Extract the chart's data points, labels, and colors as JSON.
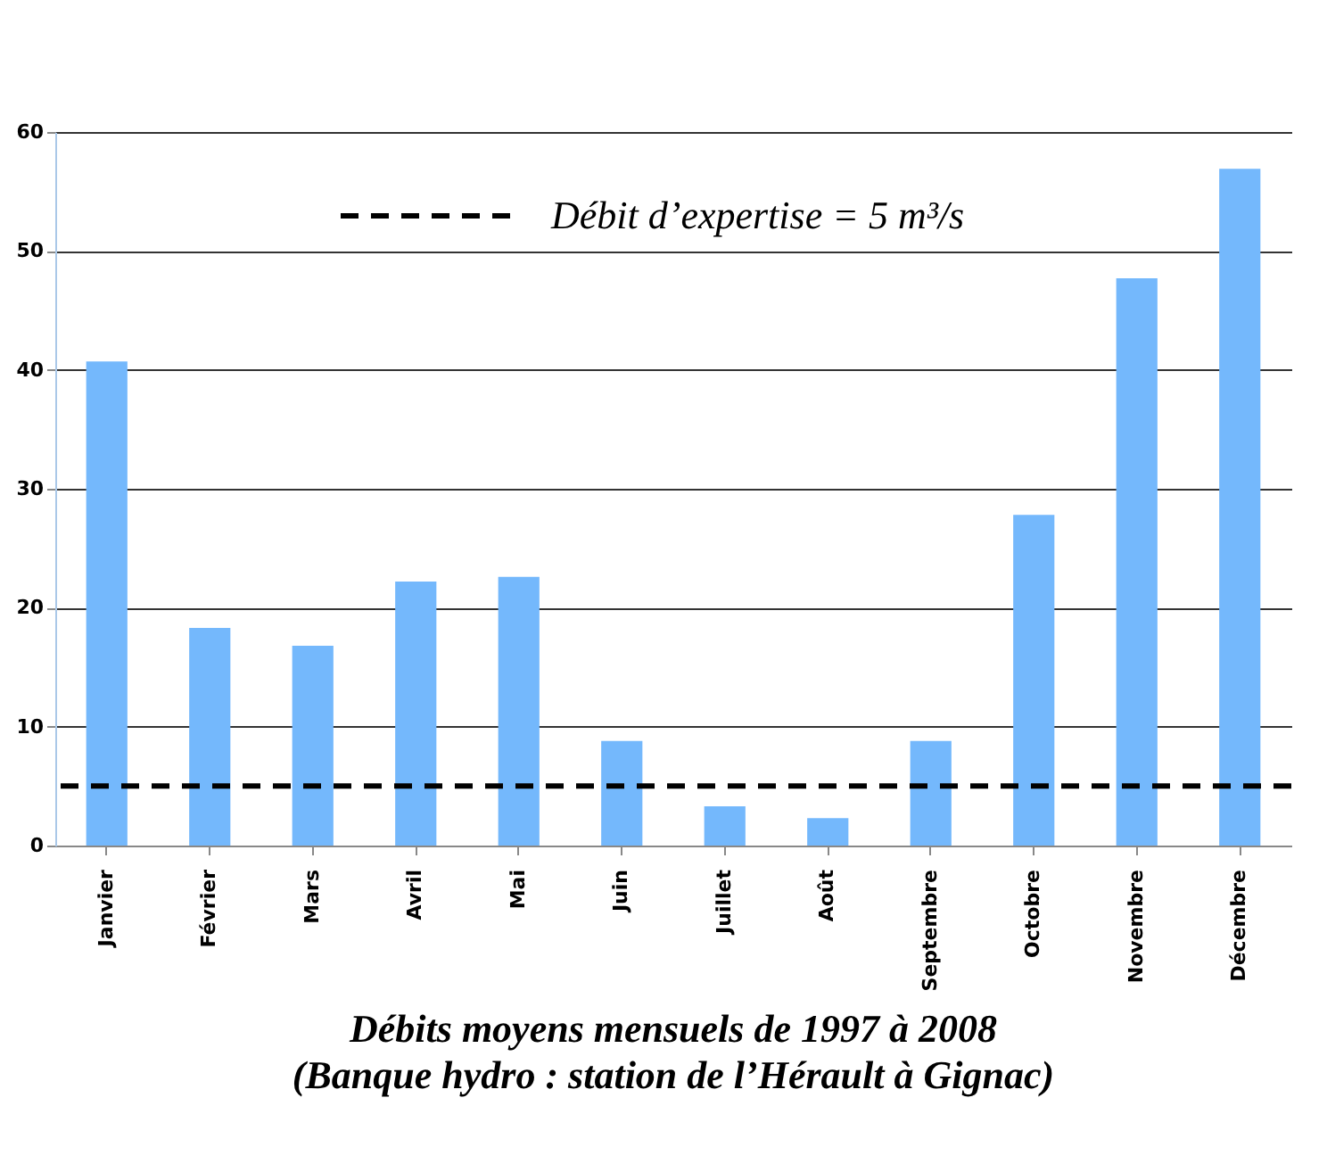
{
  "chart_data": {
    "type": "bar",
    "title": "Débits moyens mensuels de 1997 à 2008",
    "subtitle": "(Banque hydro : station de l’Hérault à Gignac)",
    "categories": [
      "Janvier",
      "Février",
      "Mars",
      "Avril",
      "Mai",
      "Juin",
      "Juillet",
      "Août",
      "Septembre",
      "Octobre",
      "Novembre",
      "Décembre"
    ],
    "values": [
      40.7,
      18.3,
      16.8,
      22.2,
      22.6,
      8.8,
      3.3,
      2.3,
      8.8,
      27.8,
      47.7,
      56.9
    ],
    "color": "#74b8fc",
    "ylim": [
      0,
      60
    ],
    "yticks": [
      0,
      10,
      20,
      30,
      40,
      50,
      60
    ],
    "grid": "y",
    "ref_lines": [
      {
        "axis": "y",
        "value": 5,
        "label": "Débit d’expertise = 5 m³/s",
        "color": "#000000",
        "line_style": "dashed"
      }
    ]
  }
}
